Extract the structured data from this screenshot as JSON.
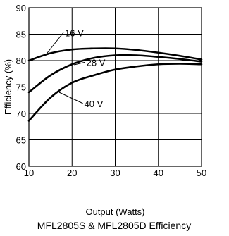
{
  "chart_data": {
    "type": "line",
    "title": "MFL2805S & MFL2805D Efficiency",
    "xlabel": "Output (Watts)",
    "ylabel": "Efficiency (%)",
    "xlim": [
      10,
      50
    ],
    "ylim": [
      60,
      90
    ],
    "xticks": [
      10,
      20,
      30,
      40,
      50
    ],
    "yticks": [
      60,
      65,
      70,
      75,
      80,
      85,
      90
    ],
    "grid": true,
    "series": [
      {
        "name": "16 V",
        "x": [
          10,
          15,
          20,
          25,
          30,
          35,
          40,
          45,
          50
        ],
        "y": [
          80.0,
          81.4,
          82.1,
          82.3,
          82.3,
          82.0,
          81.5,
          80.9,
          80.2
        ]
      },
      {
        "name": "28 V",
        "x": [
          10,
          15,
          20,
          25,
          30,
          35,
          40,
          45,
          50
        ],
        "y": [
          74.0,
          77.2,
          79.3,
          80.5,
          81.0,
          81.0,
          80.7,
          80.3,
          79.8
        ]
      },
      {
        "name": "40 V",
        "x": [
          10,
          15,
          20,
          25,
          30,
          35,
          40,
          45,
          50
        ],
        "y": [
          68.6,
          73.0,
          75.8,
          77.2,
          78.3,
          78.9,
          79.3,
          79.4,
          79.3
        ]
      }
    ]
  }
}
